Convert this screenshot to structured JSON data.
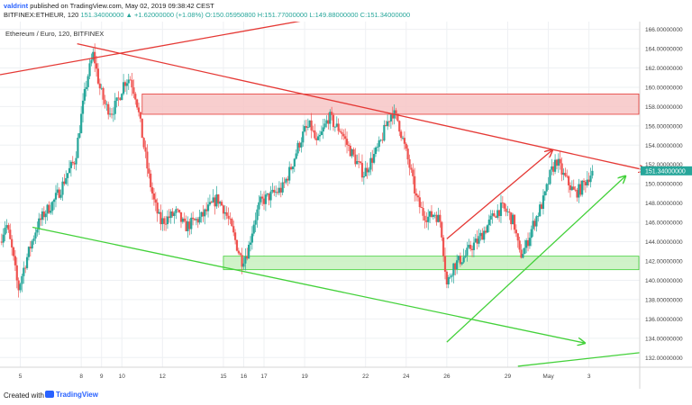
{
  "header": {
    "user": "valdrint",
    "published": "published on TradingView.com, May 02, 2019 09:38:42 CEST",
    "symbol": "BITFINEX:ETHEUR, 120",
    "change": "151.34000000 ▲ +1.62000000 (+1.08%)",
    "ohlc": "O:150.05950800 H:151.77000000 L:149.88000000 C:151.34000000"
  },
  "chart_label": "Ethereum / Euro, 120, BITFINEX",
  "footer": {
    "created_with": "Created with",
    "brand": "TradingView"
  },
  "colors": {
    "up": "#26a69a",
    "down": "#ef5350",
    "resistance_zone": "#f7c5c5",
    "support_zone": "#c8f0c0",
    "red_line": "#e53935",
    "green_line": "#43d13a",
    "price_tag": "#26a69a"
  },
  "chart_data": {
    "type": "candlestick",
    "title": "Ethereum / Euro, 120, BITFINEX",
    "y_ticks": [
      "166.00000000",
      "164.00000000",
      "162.00000000",
      "160.00000000",
      "158.00000000",
      "156.00000000",
      "154.00000000",
      "152.00000000",
      "150.00000000",
      "148.00000000",
      "146.00000000",
      "144.00000000",
      "142.00000000",
      "140.00000000",
      "138.00000000",
      "136.00000000",
      "134.00000000",
      "132.00000000"
    ],
    "ylim": [
      131,
      166.8
    ],
    "x_ticks": [
      "5",
      "8",
      "9",
      "10",
      "12",
      "15",
      "16",
      "17",
      "19",
      "22",
      "24",
      "26",
      "29",
      "May",
      "3"
    ],
    "x_tick_days": [
      5,
      8,
      9,
      10,
      12,
      15,
      16,
      17,
      19,
      22,
      24,
      26,
      29,
      31,
      33
    ],
    "xlim": [
      4.0,
      35.5
    ],
    "last_price": "151.34000000",
    "last_value": 151.34,
    "close_path": [
      [
        4.0,
        144.0
      ],
      [
        4.3,
        146.0
      ],
      [
        4.6,
        143.0
      ],
      [
        4.9,
        139.0
      ],
      [
        5.2,
        141.5
      ],
      [
        5.5,
        143.5
      ],
      [
        5.8,
        145.5
      ],
      [
        6.2,
        147.0
      ],
      [
        6.6,
        148.0
      ],
      [
        7.0,
        149.5
      ],
      [
        7.3,
        151.0
      ],
      [
        7.7,
        152.5
      ],
      [
        8.0,
        157.0
      ],
      [
        8.3,
        161.0
      ],
      [
        8.6,
        163.5
      ],
      [
        8.9,
        160.0
      ],
      [
        9.2,
        158.0
      ],
      [
        9.5,
        157.5
      ],
      [
        9.8,
        158.5
      ],
      [
        10.1,
        160.5
      ],
      [
        10.4,
        161.0
      ],
      [
        10.7,
        159.0
      ],
      [
        11.0,
        155.0
      ],
      [
        11.3,
        151.0
      ],
      [
        11.6,
        148.0
      ],
      [
        11.9,
        146.0
      ],
      [
        12.3,
        146.5
      ],
      [
        12.7,
        147.0
      ],
      [
        13.1,
        145.5
      ],
      [
        13.5,
        146.0
      ],
      [
        13.9,
        146.5
      ],
      [
        14.3,
        147.5
      ],
      [
        14.7,
        148.5
      ],
      [
        15.0,
        147.5
      ],
      [
        15.3,
        146.0
      ],
      [
        15.6,
        144.0
      ],
      [
        15.9,
        142.0
      ],
      [
        16.2,
        143.0
      ],
      [
        16.5,
        146.0
      ],
      [
        16.8,
        148.0
      ],
      [
        17.1,
        148.5
      ],
      [
        17.5,
        149.0
      ],
      [
        17.9,
        149.5
      ],
      [
        18.3,
        151.5
      ],
      [
        18.7,
        154.0
      ],
      [
        19.0,
        155.5
      ],
      [
        19.3,
        156.0
      ],
      [
        19.6,
        154.0
      ],
      [
        19.9,
        155.5
      ],
      [
        20.2,
        157.0
      ],
      [
        20.5,
        156.0
      ],
      [
        20.8,
        155.5
      ],
      [
        21.1,
        154.0
      ],
      [
        21.5,
        152.5
      ],
      [
        21.9,
        151.0
      ],
      [
        22.3,
        152.5
      ],
      [
        22.7,
        154.0
      ],
      [
        23.0,
        156.0
      ],
      [
        23.3,
        157.5
      ],
      [
        23.6,
        156.5
      ],
      [
        23.9,
        154.0
      ],
      [
        24.2,
        151.5
      ],
      [
        24.5,
        148.5
      ],
      [
        24.8,
        147.0
      ],
      [
        25.1,
        146.5
      ],
      [
        25.4,
        147.0
      ],
      [
        25.7,
        146.0
      ],
      [
        26.0,
        139.5
      ],
      [
        26.3,
        141.5
      ],
      [
        26.6,
        142.0
      ],
      [
        26.9,
        142.5
      ],
      [
        27.2,
        143.5
      ],
      [
        27.5,
        144.0
      ],
      [
        27.8,
        145.0
      ],
      [
        28.1,
        146.0
      ],
      [
        28.4,
        147.0
      ],
      [
        28.7,
        147.5
      ],
      [
        29.0,
        147.0
      ],
      [
        29.3,
        146.0
      ],
      [
        29.6,
        142.5
      ],
      [
        29.9,
        143.5
      ],
      [
        30.2,
        145.5
      ],
      [
        30.5,
        147.0
      ],
      [
        30.8,
        148.5
      ],
      [
        31.1,
        151.0
      ],
      [
        31.4,
        152.5
      ],
      [
        31.7,
        151.0
      ],
      [
        32.0,
        150.0
      ],
      [
        32.3,
        149.0
      ],
      [
        32.6,
        149.5
      ],
      [
        32.9,
        150.5
      ],
      [
        33.2,
        151.34
      ]
    ],
    "trendlines": [
      {
        "name": "upper-resistance-line",
        "color": "red",
        "x1": 4.0,
        "y1": 161.3,
        "x2": 20.5,
        "y2": 167.5
      },
      {
        "name": "descending-resistance-line",
        "color": "red",
        "x1": 7.8,
        "y1": 164.5,
        "x2": 35.8,
        "y2": 151.4,
        "arrow": true
      },
      {
        "name": "rising-wedge-line",
        "color": "red",
        "x1": 26.0,
        "y1": 144.3,
        "x2": 31.2,
        "y2": 153.5,
        "arrow": true
      },
      {
        "name": "lower-support-line",
        "color": "green",
        "x1": 5.6,
        "y1": 145.5,
        "x2": 32.8,
        "y2": 133.5,
        "arrow": true
      },
      {
        "name": "ascending-support-line",
        "color": "green",
        "x1": 26.0,
        "y1": 133.6,
        "x2": 34.8,
        "y2": 150.8,
        "arrow": true
      },
      {
        "name": "bottom-right-line",
        "color": "green",
        "x1": 29.5,
        "y1": 131.1,
        "x2": 35.5,
        "y2": 132.5
      }
    ],
    "zones": [
      {
        "name": "resistance-zone",
        "color": "red",
        "x1": 11.0,
        "x2": 35.5,
        "y1": 157.2,
        "y2": 159.3
      },
      {
        "name": "support-zone",
        "color": "green",
        "x1": 15.0,
        "x2": 35.5,
        "y1": 141.1,
        "y2": 142.5
      }
    ],
    "grid": true
  }
}
